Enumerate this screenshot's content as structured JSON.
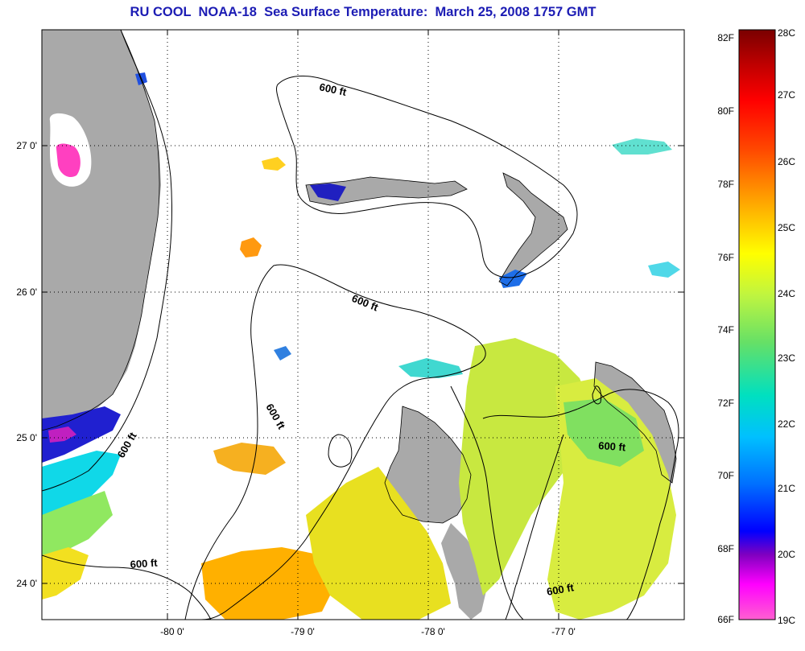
{
  "title": "RU COOL  NOAA-18  Sea Surface Temperature:  March 25, 2008 1757 GMT",
  "map": {
    "lat_ticks": [
      "27 0'",
      "26 0'",
      "25 0'",
      "24 0'"
    ],
    "lon_ticks": [
      "-80 0'",
      "-79 0'",
      "-78 0'",
      "-77 0'"
    ],
    "contour_label": "600 ft",
    "land_color": "#a9a9a9",
    "ocean_no_data_color": "#ffffff"
  },
  "colorbar": {
    "fahrenheit_labels": [
      "82F",
      "80F",
      "78F",
      "76F",
      "74F",
      "72F",
      "70F",
      "68F",
      "66F"
    ],
    "celsius_labels": [
      "28C",
      "27C",
      "26C",
      "25C",
      "24C",
      "23C",
      "22C",
      "21C",
      "20C",
      "19C"
    ],
    "colors": [
      "#7a0000",
      "#c00000",
      "#ff0000",
      "#ff5a00",
      "#ff9900",
      "#ffcc00",
      "#ffff00",
      "#bff540",
      "#66e066",
      "#00e0c0",
      "#00c0ff",
      "#0070ff",
      "#0000ff",
      "#8000c0",
      "#ff00ff",
      "#ff60d0"
    ]
  }
}
